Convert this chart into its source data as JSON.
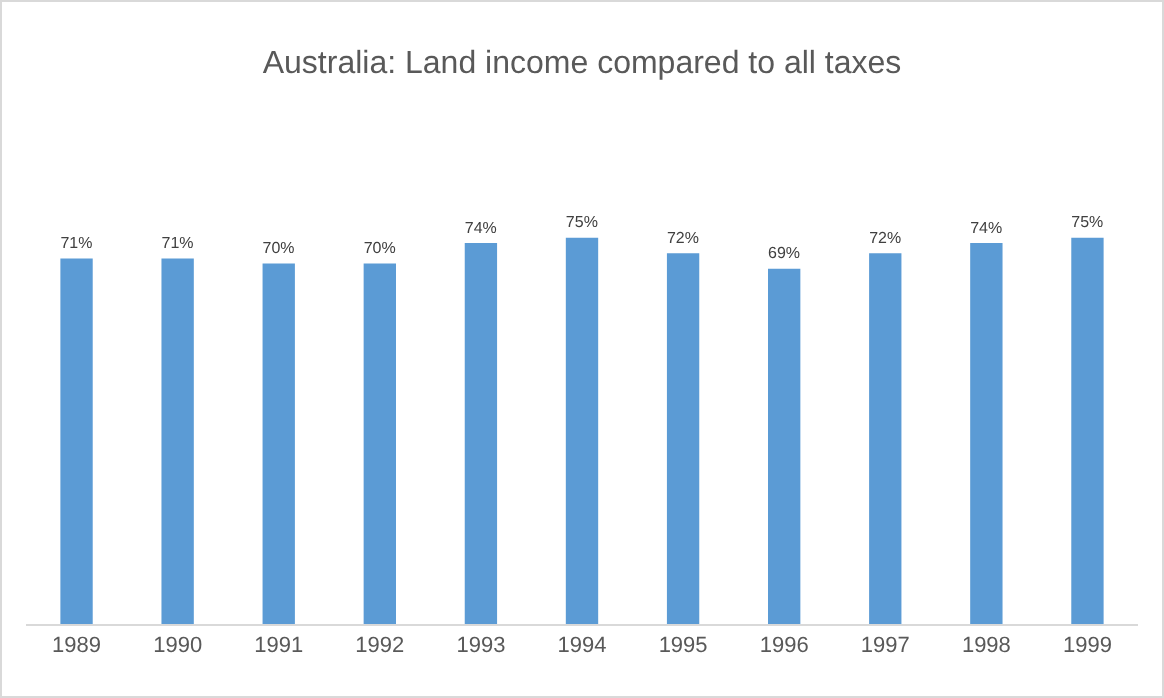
{
  "chart_data": {
    "type": "bar",
    "title": "Australia: Land income compared to all taxes",
    "categories": [
      "1989",
      "1990",
      "1991",
      "1992",
      "1993",
      "1994",
      "1995",
      "1996",
      "1997",
      "1998",
      "1999"
    ],
    "values": [
      71,
      71,
      70,
      70,
      74,
      75,
      72,
      69,
      72,
      74,
      75
    ],
    "value_labels": [
      "71%",
      "71%",
      "70%",
      "70%",
      "74%",
      "75%",
      "72%",
      "69%",
      "72%",
      "74%",
      "75%"
    ],
    "color": "#5b9bd5",
    "grid": false,
    "legend": false
  }
}
